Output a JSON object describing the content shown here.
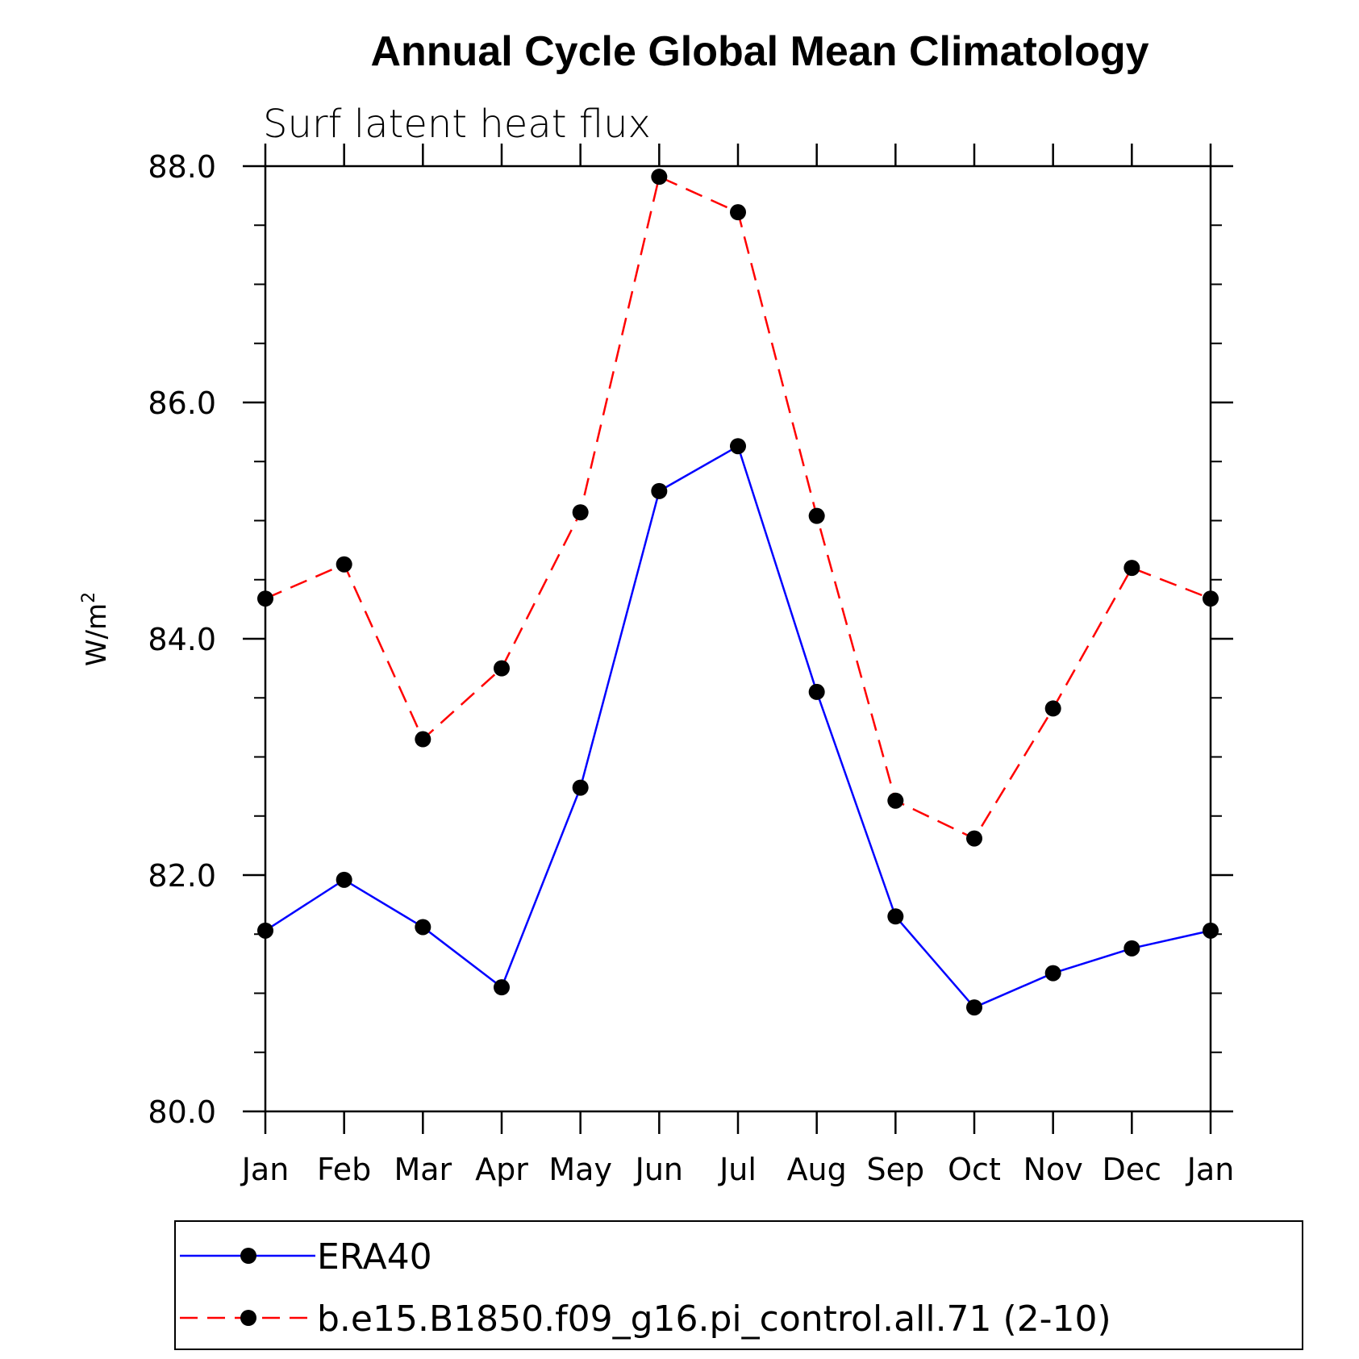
{
  "chart_data": {
    "type": "line",
    "title": "Annual Cycle Global Mean Climatology",
    "subtitle": "Surf latent heat flux",
    "ylabel": "W/m",
    "ylabel_superscript": "2",
    "xlabel": "",
    "ylim": [
      80.0,
      88.0
    ],
    "yticks": [
      "80.0",
      "82.0",
      "84.0",
      "86.0",
      "88.0"
    ],
    "categories": [
      "Jan",
      "Feb",
      "Mar",
      "Apr",
      "May",
      "Jun",
      "Jul",
      "Aug",
      "Sep",
      "Oct",
      "Nov",
      "Dec",
      "Jan"
    ],
    "grid": false,
    "legend_position": "bottom",
    "series": [
      {
        "name": "ERA40",
        "color": "#0000ff",
        "style": "solid",
        "marker": "filled-circle",
        "values": [
          81.53,
          81.96,
          81.56,
          81.05,
          82.74,
          85.25,
          85.63,
          83.55,
          81.65,
          80.88,
          81.17,
          81.38,
          81.53
        ]
      },
      {
        "name": "b.e15.B1850.f09_g16.pi_control.all.71 (2-10)",
        "color": "#ff0000",
        "style": "dashed",
        "marker": "filled-circle",
        "values": [
          84.34,
          84.63,
          83.15,
          83.75,
          85.07,
          87.91,
          87.61,
          85.04,
          82.63,
          82.31,
          83.41,
          84.6,
          84.34
        ]
      }
    ]
  }
}
